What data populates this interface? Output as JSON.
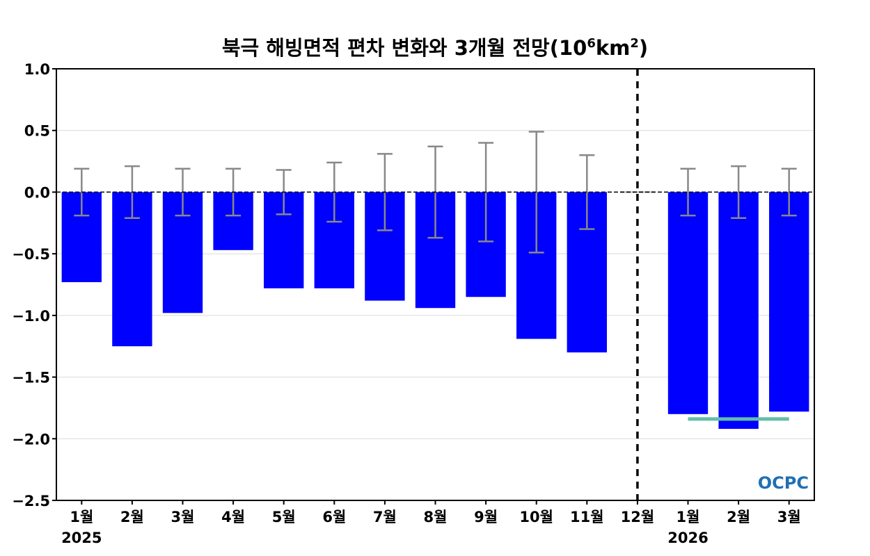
{
  "chart_data": {
    "type": "bar",
    "title": "북극 해빙면적 편차 변화와 3개월 전망(10⁶km²)",
    "title_parts": {
      "main": "북극 해빙면적 편차 변화와 3개월 전망(10",
      "sup1": "6",
      "mid": "km",
      "sup2": "2",
      "end": ")"
    },
    "categories": [
      "1월",
      "2월",
      "3월",
      "4월",
      "5월",
      "6월",
      "7월",
      "8월",
      "9월",
      "10월",
      "11월",
      "12월",
      "1월",
      "2월",
      "3월"
    ],
    "years": [
      {
        "label": "2025",
        "category_index": 0
      },
      {
        "label": "2026",
        "category_index": 12
      }
    ],
    "values": [
      -0.73,
      -1.25,
      -0.98,
      -0.47,
      -0.78,
      -0.78,
      -0.88,
      -0.94,
      -0.85,
      -1.19,
      -1.3,
      null,
      -1.8,
      -1.92,
      -1.78
    ],
    "errors": [
      0.19,
      0.21,
      0.19,
      0.19,
      0.18,
      0.24,
      0.31,
      0.37,
      0.4,
      0.49,
      0.3,
      null,
      0.19,
      0.21,
      0.19
    ],
    "forecast_divider_index": 11,
    "forecast_mean": {
      "value": -1.84,
      "from_index": 12,
      "to_index": 14
    },
    "ylim": [
      -2.5,
      1.0
    ],
    "yticks": [
      1.0,
      0.5,
      0.0,
      -0.5,
      -1.0,
      -1.5,
      -2.0,
      -2.5
    ],
    "ytick_labels": [
      "1.0",
      "0.5",
      "0.0",
      "−0.5",
      "−1.0",
      "−1.5",
      "−2.0",
      "−2.5"
    ],
    "grid": true,
    "colors": {
      "bar": "#0000ff",
      "error": "#888888",
      "forecast_mean": "#5fbfa8",
      "divider": "#000000",
      "grid": "#d9d9d9"
    },
    "logo": "OCPC"
  }
}
